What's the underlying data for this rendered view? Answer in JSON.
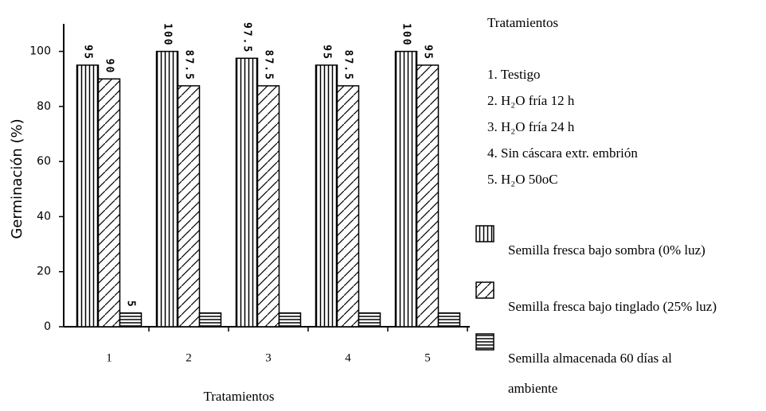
{
  "chart_data": {
    "type": "bar",
    "ylabel": "Germinación (%)",
    "xlabel": "Tratamientos",
    "legend_title": "Tratamientos",
    "treatments": [
      "1. Testigo",
      "2. H₂O fría 12 h",
      "3. H₂O fría 24 h",
      "4. Sin cáscara extr. embrión",
      "5. H₂O 50oC"
    ],
    "categories": [
      "1",
      "2",
      "3",
      "4",
      "5"
    ],
    "series": [
      {
        "name": "Semilla fresca bajo sombra (0% luz)",
        "color": "#000000",
        "pattern": "vertical",
        "values": [
          95,
          100,
          97.5,
          95,
          100
        ]
      },
      {
        "name": "Semilla fresca bajo tinglado (25% luz)",
        "color": "#000000",
        "pattern": "diagonal",
        "values": [
          90,
          87.5,
          87.5,
          87.5,
          95
        ]
      },
      {
        "name": "Semilla almacenada 60 días al ambiente",
        "color": "#000000",
        "pattern": "horizontal",
        "values": [
          5,
          5,
          5,
          5,
          5
        ],
        "value_labels": [
          "5",
          null,
          null,
          null,
          null
        ]
      }
    ],
    "ylim": [
      0,
      110
    ],
    "yticks": [
      0,
      20,
      40,
      60,
      80,
      100
    ],
    "grid": false
  }
}
